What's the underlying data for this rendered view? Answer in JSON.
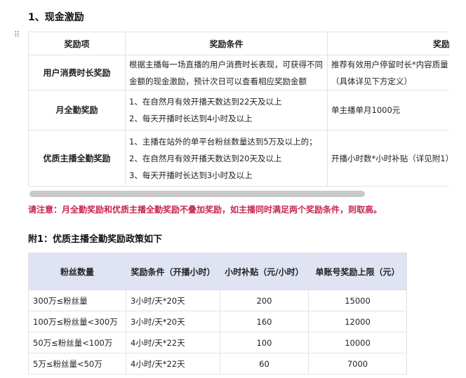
{
  "section_title": "1、现金激励",
  "incentive_table": {
    "headers": [
      "奖励项",
      "奖励条件",
      "奖励计算方"
    ],
    "rows": [
      {
        "item": "用户消费时长奖励",
        "conditions": [
          "根据主播每一场直播的用户消费时长表现，可获得不同",
          "金额的现金激励，预计次日可以查看相应奖励金额"
        ],
        "calc": [
          "推荐有效用户停留时长*内容质量",
          "（具体详见下方定义）"
        ]
      },
      {
        "item": "月全勤奖励",
        "conditions": [
          "1、在自然月有效开播天数达到22天及以上",
          "2、每天开播时长达到4小时及以上"
        ],
        "calc": [
          "单主播单月1000元"
        ]
      },
      {
        "item": "优质主播全勤奖励",
        "conditions": [
          "1、主播在站外的单平台粉丝数量达到5万及以上的；",
          "2、在自然月有效开播天数达到20天及以上",
          "3、每天开播时长达到3小时及以上"
        ],
        "calc": [
          "开播小时数*小时补贴（详见附1）"
        ]
      }
    ]
  },
  "note": "请注意：月全勤奖励和优质主播全勤奖励不叠加奖励，如主播同时满足两个奖励条件，则取高。",
  "appendix_title": "附1：优质主播全勤奖励政策如下",
  "policy_table": {
    "headers": [
      "粉丝数量",
      "奖励条件（开播小时）",
      "小时补贴（元/小时）",
      "单账号奖励上限（元）"
    ],
    "rows": [
      [
        "300万≤粉丝量",
        "3小时/天*20天",
        "200",
        "15000"
      ],
      [
        "100万≤粉丝量<300万",
        "3小时/天*20天",
        "160",
        "12000"
      ],
      [
        "50万≤粉丝量<100万",
        "4小时/天*22天",
        "100",
        "10000"
      ],
      [
        "5万≤粉丝量<50万",
        "4小时/天*22天",
        "60",
        "7000"
      ]
    ]
  },
  "colors": {
    "note": "#c8264f",
    "header_bg": "#dfe3f3"
  }
}
